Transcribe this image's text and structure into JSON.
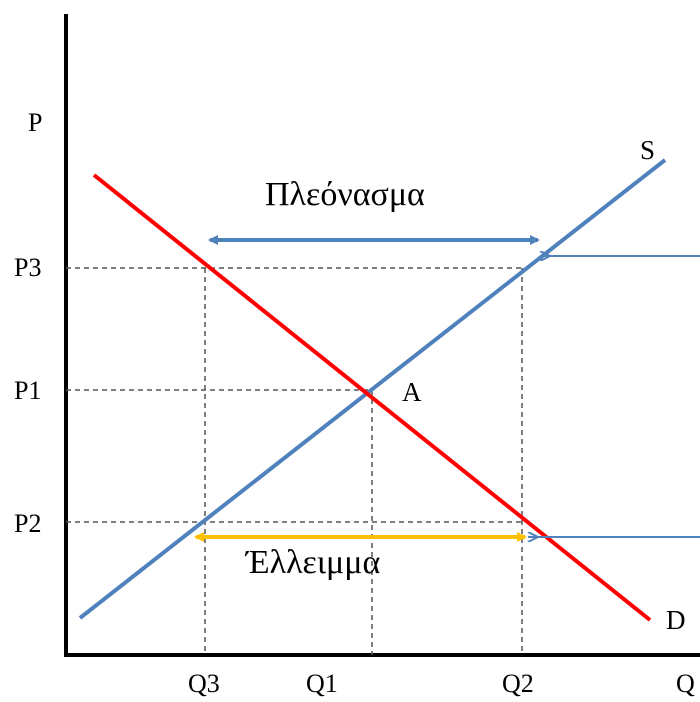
{
  "axes": {
    "y_label": "P",
    "x_label": "Q"
  },
  "y_ticks": {
    "p3": "P3",
    "p1": "P1",
    "p2": "P2"
  },
  "x_ticks": {
    "q3": "Q3",
    "q1": "Q1",
    "q2": "Q2"
  },
  "curves": {
    "supply": {
      "label": "S",
      "color": "#4f81bd"
    },
    "demand": {
      "label": "D",
      "color": "#ff0000"
    }
  },
  "equilibrium_label": "A",
  "surplus": {
    "label": "Πλεόνασμα",
    "color": "#4f81bd"
  },
  "shortage": {
    "label": "Έλλειμμα",
    "color": "#ffc000"
  }
}
